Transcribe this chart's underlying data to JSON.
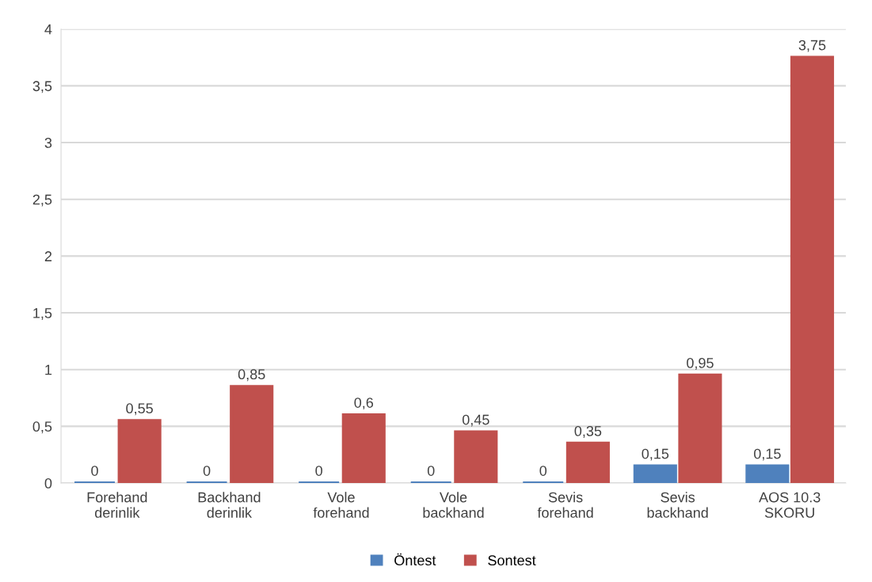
{
  "chart_data": {
    "type": "bar",
    "categories": [
      "Forehand\nderinlik",
      "Backhand\nderinlik",
      "Vole\nforehand",
      "Vole\nbackhand",
      "Sevis\nforehand",
      "Sevis\nbackhand",
      "AOS 10.3\nSKORU"
    ],
    "series": [
      {
        "name": "Öntest",
        "color": "#4f81bd",
        "values": [
          0,
          0,
          0,
          0,
          0,
          0.15,
          0.15
        ],
        "value_labels": [
          "0",
          "0",
          "0",
          "0",
          "0",
          "0,15",
          "0,15"
        ]
      },
      {
        "name": "Sontest",
        "color": "#c0504d",
        "values": [
          0.55,
          0.85,
          0.6,
          0.45,
          0.35,
          0.95,
          3.75
        ],
        "value_labels": [
          "0,55",
          "0,85",
          "0,6",
          "0,45",
          "0,35",
          "0,95",
          "3,75"
        ]
      }
    ],
    "ylim": [
      0,
      4
    ],
    "yticks": [
      0,
      {
        "value": 0.5,
        "label": "0,5"
      },
      1,
      {
        "value": 1.5,
        "label": "1,5"
      },
      2,
      {
        "value": 2.5,
        "label": "2,5"
      },
      3,
      {
        "value": 3.5,
        "label": "3,5"
      },
      4
    ],
    "grid": "y",
    "legend": "bottom"
  }
}
